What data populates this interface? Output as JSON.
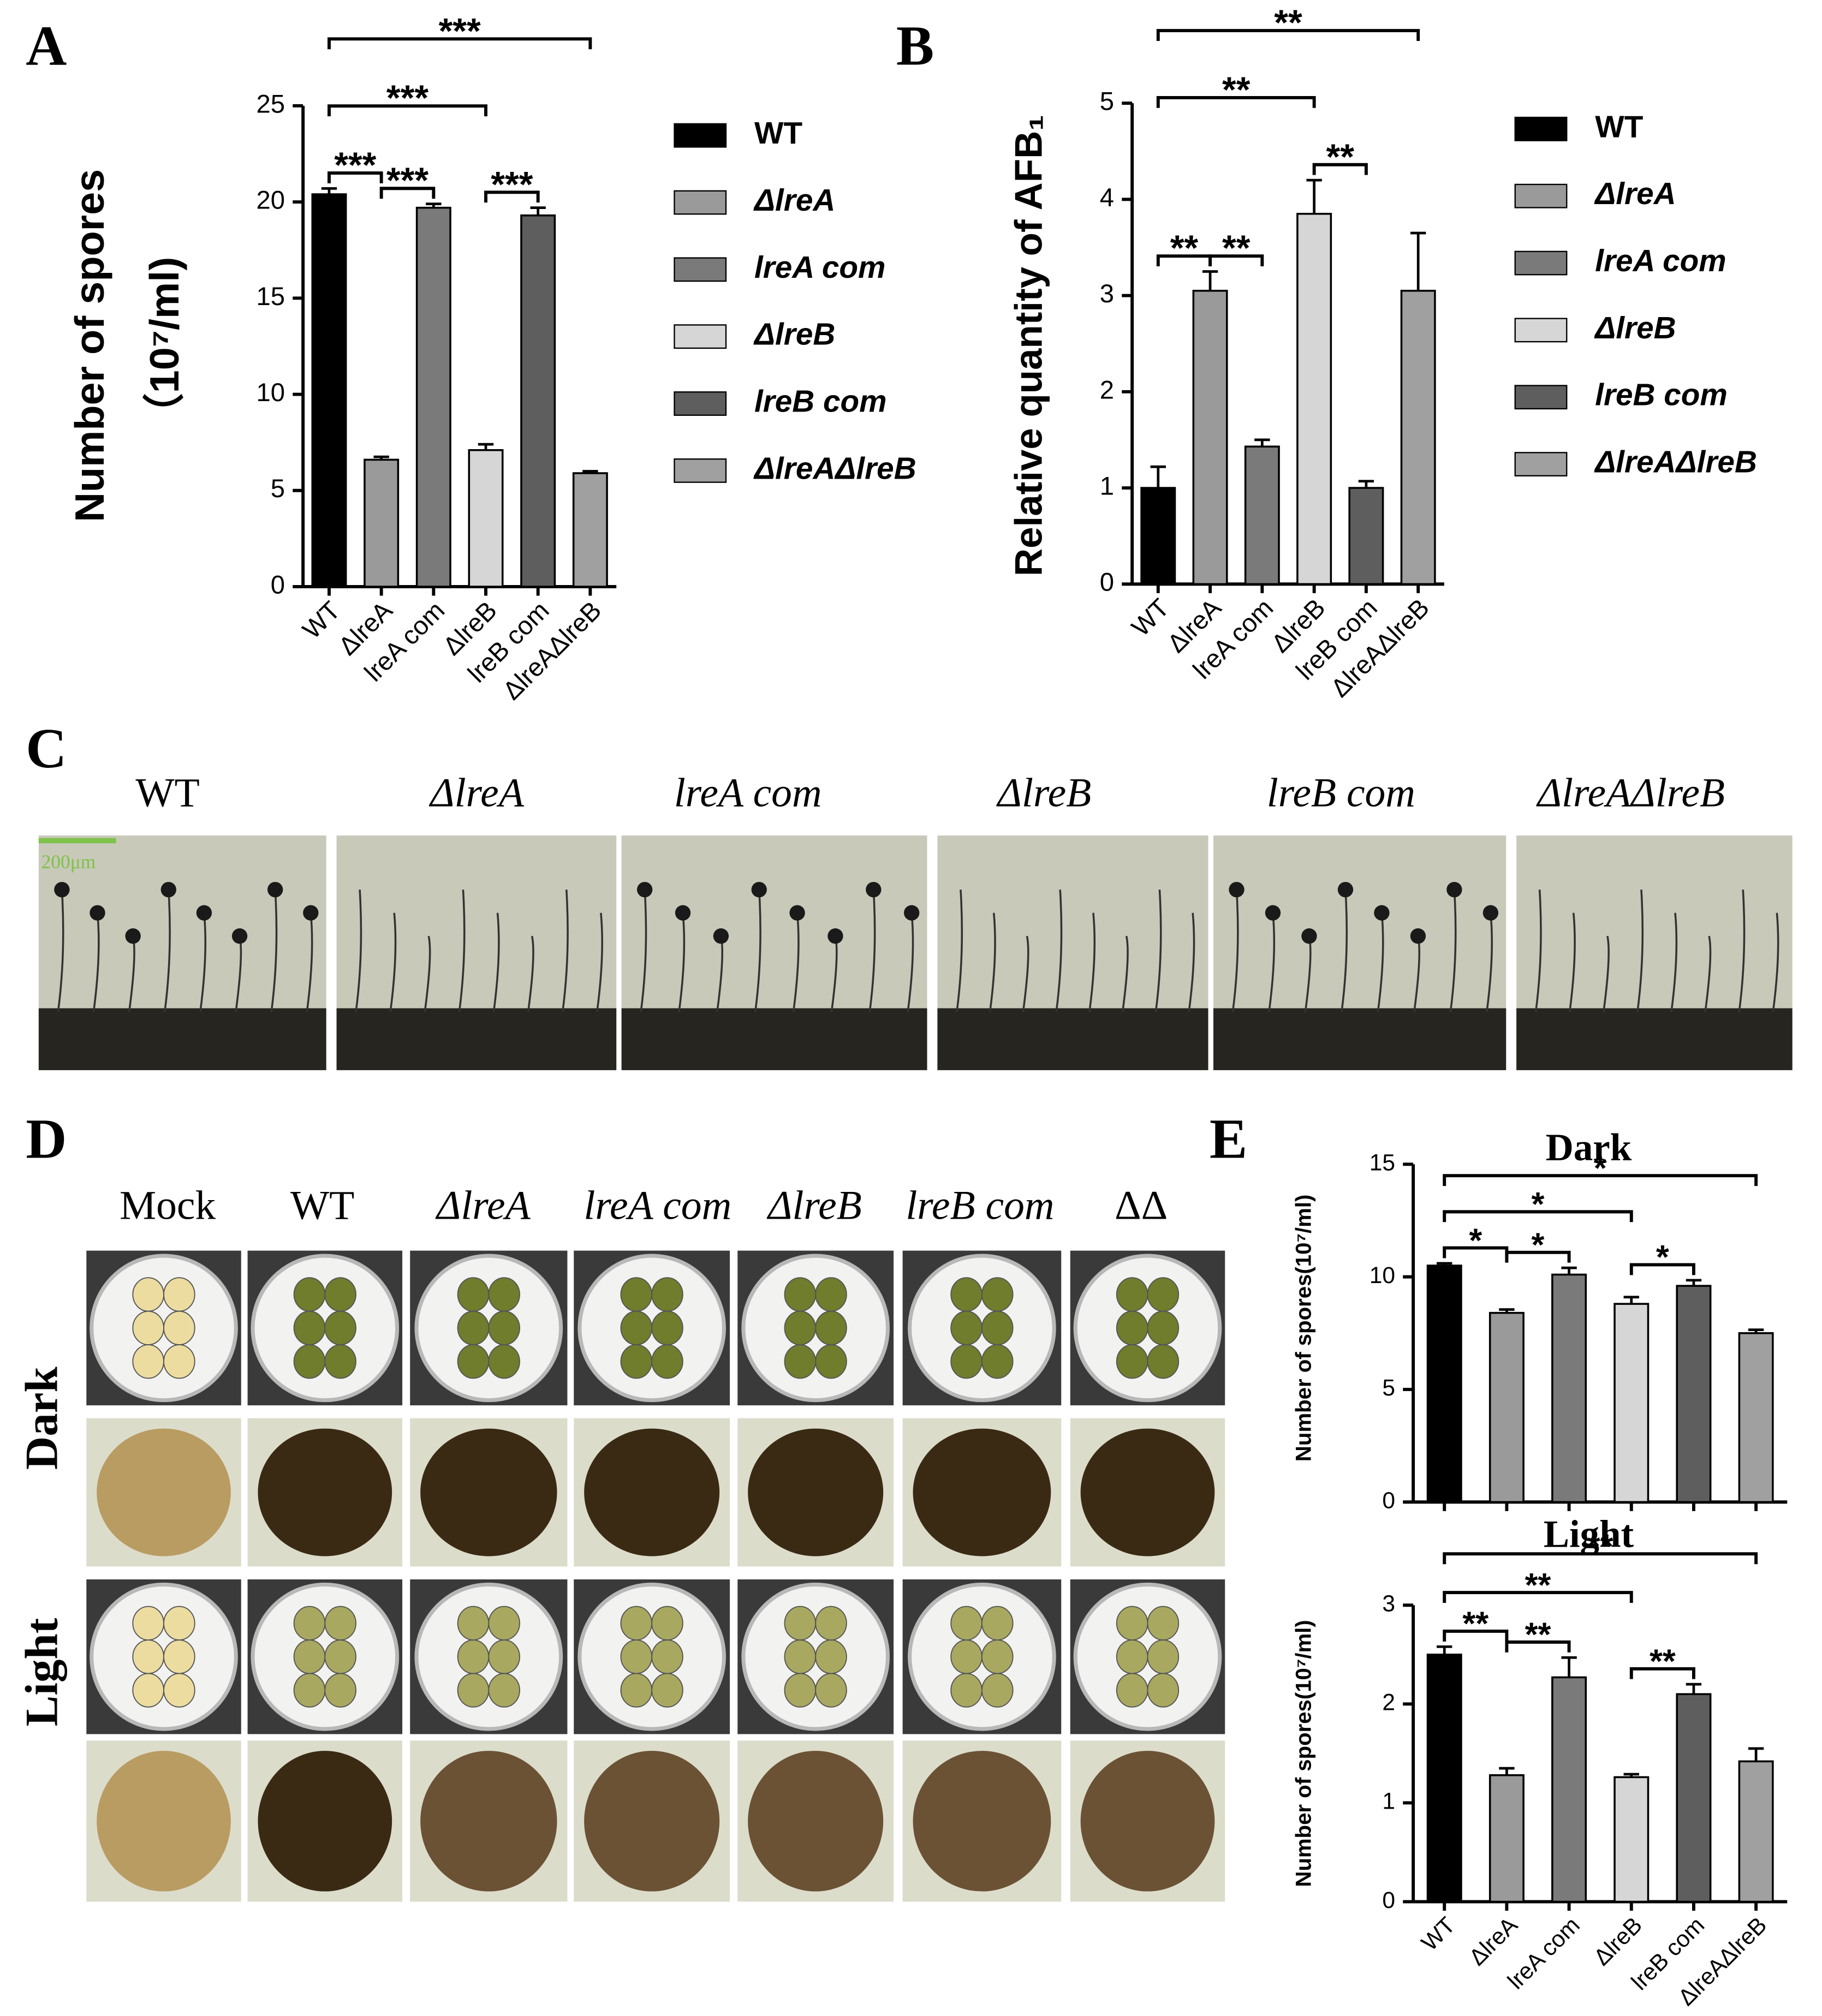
{
  "panel_labels": [
    "A",
    "B",
    "C",
    "D",
    "E"
  ],
  "chart_data": [
    {
      "type": "bar",
      "y_label": [
        "Number of spores",
        "（10⁷/ml)"
      ],
      "categories": [
        "WT",
        "ΔlreA",
        "lreA com",
        "ΔlreB",
        "lreB com",
        "ΔlreAΔlreB"
      ],
      "values": [
        20.4,
        6.6,
        19.7,
        7.1,
        19.3,
        5.9
      ],
      "errors": [
        0.3,
        0.15,
        0.2,
        0.3,
        0.4,
        0.1
      ],
      "colors": [
        "#000000",
        "#9a9a9a",
        "#7a7a7a",
        "#d6d6d6",
        "#5e5e5e",
        "#a0a0a0"
      ],
      "ylim": [
        0,
        25
      ],
      "yticks": [
        0,
        5,
        10,
        15,
        20,
        25
      ],
      "legend": "right",
      "annotations": [
        {
          "text": "***",
          "between": [
            0,
            1
          ]
        },
        {
          "text": "***",
          "between": [
            1,
            2
          ]
        },
        {
          "text": "***",
          "between": [
            3,
            4
          ]
        },
        {
          "text": "***",
          "between": [
            0,
            3
          ]
        },
        {
          "text": "***",
          "between": [
            0,
            5
          ]
        }
      ]
    },
    {
      "type": "bar",
      "y_label": [
        "Relative quantity of AFB₁"
      ],
      "categories": [
        "WT",
        "ΔlreA",
        "lreA com",
        "ΔlreB",
        "lreB com",
        "ΔlreAΔlreB"
      ],
      "values": [
        1.0,
        3.05,
        1.43,
        3.85,
        1.0,
        3.05
      ],
      "errors": [
        0.22,
        0.2,
        0.07,
        0.35,
        0.07,
        0.6
      ],
      "colors": [
        "#000000",
        "#9a9a9a",
        "#7a7a7a",
        "#d6d6d6",
        "#5e5e5e",
        "#a0a0a0"
      ],
      "ylim": [
        0,
        5
      ],
      "yticks": [
        0,
        1,
        2,
        3,
        4,
        5
      ],
      "legend": "right",
      "annotations": [
        {
          "text": "**",
          "between": [
            0,
            1
          ]
        },
        {
          "text": "**",
          "between": [
            1,
            2
          ]
        },
        {
          "text": "**",
          "between": [
            3,
            4
          ]
        },
        {
          "text": "**",
          "between": [
            0,
            3
          ]
        },
        {
          "text": "**",
          "between": [
            0,
            5
          ]
        }
      ]
    },
    {
      "type": "bar",
      "title": "Dark",
      "y_label": [
        "Number of spores(10⁷/ml)"
      ],
      "categories": [
        null,
        null,
        null,
        null,
        null,
        null
      ],
      "values": [
        10.5,
        8.4,
        10.1,
        8.8,
        9.6,
        7.5
      ],
      "errors": [
        0.1,
        0.15,
        0.3,
        0.3,
        0.25,
        0.15
      ],
      "colors": [
        "#000000",
        "#9a9a9a",
        "#7a7a7a",
        "#d6d6d6",
        "#5e5e5e",
        "#a0a0a0"
      ],
      "ylim": [
        0,
        15
      ],
      "yticks": [
        0,
        5,
        10,
        15
      ],
      "annotations": [
        {
          "text": "*",
          "between": [
            0,
            1
          ]
        },
        {
          "text": "*",
          "between": [
            1,
            2
          ]
        },
        {
          "text": "*",
          "between": [
            3,
            4
          ]
        },
        {
          "text": "*",
          "between": [
            0,
            3
          ]
        },
        {
          "text": "*",
          "between": [
            0,
            5
          ]
        }
      ]
    },
    {
      "type": "bar",
      "title": "Light",
      "y_label": [
        "Number of spores(10⁷/ml)"
      ],
      "categories": [
        "WT",
        "ΔlreA",
        "lreA com",
        "ΔlreB",
        "lreB com",
        "ΔlreAΔlreB"
      ],
      "values": [
        2.5,
        1.28,
        2.27,
        1.26,
        2.1,
        1.42
      ],
      "errors": [
        0.08,
        0.07,
        0.2,
        0.03,
        0.1,
        0.13
      ],
      "colors": [
        "#000000",
        "#9a9a9a",
        "#7a7a7a",
        "#d6d6d6",
        "#5e5e5e",
        "#a0a0a0"
      ],
      "ylim": [
        0,
        3
      ],
      "yticks": [
        0,
        1,
        2,
        3
      ],
      "annotations": [
        {
          "text": "**",
          "between": [
            0,
            1
          ]
        },
        {
          "text": "**",
          "between": [
            1,
            2
          ]
        },
        {
          "text": "**",
          "between": [
            3,
            4
          ]
        },
        {
          "text": "**",
          "between": [
            0,
            3
          ]
        },
        {
          "text": "**",
          "between": [
            0,
            5
          ]
        }
      ]
    }
  ],
  "panel_c": {
    "columns": [
      "WT",
      "ΔlreA",
      "lreA com",
      "ΔlreB",
      "lreB com",
      "ΔlreAΔlreB"
    ],
    "scale_bar": "200μm"
  },
  "panel_d": {
    "columns": [
      "Mock",
      "WT",
      "ΔlreA",
      "lreA com",
      "ΔlreB",
      "lreB com",
      "ΔΔ"
    ],
    "rows": [
      "Dark",
      "Light"
    ]
  }
}
